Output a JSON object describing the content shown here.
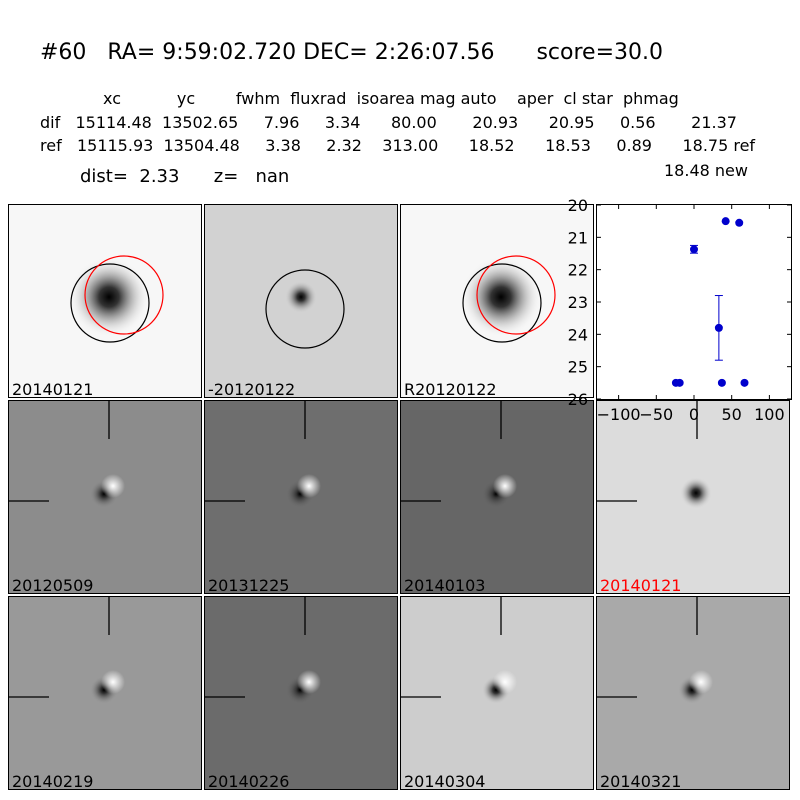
{
  "header": {
    "title": "#60   RA= 9:59:02.720 DEC= 2:26:07.56      score=30.0",
    "col_headers": "xc           yc        fwhm  fluxrad  isoarea mag auto    aper  cl star  phmag",
    "dif_row": "dif   15114.48  13502.65     7.96     3.34      80.00       20.93      20.95     0.56       21.37",
    "ref_row": "ref   15115.93  13504.48     3.38     2.32    313.00      18.52      18.53     0.89      18.75 ref",
    "new_row": "18.48 new",
    "dist_line": "dist=  2.33      z=   nan"
  },
  "stamps": [
    {
      "label": "20140121",
      "label_color": "#000000",
      "bg": "#f7f7f7",
      "style": "ref-blob",
      "circles": [
        "black",
        "red"
      ]
    },
    {
      "label": "-20120122",
      "label_color": "#000000",
      "bg": "#d2d2d2",
      "style": "dif-dot",
      "circles": [
        "black"
      ]
    },
    {
      "label": "R20120122",
      "label_color": "#000000",
      "bg": "#f7f7f7",
      "style": "ref-blob",
      "circles": [
        "black",
        "red"
      ]
    },
    {
      "label": "20120509",
      "label_color": "#000000",
      "bg": "#8c8c8c",
      "style": "dipole",
      "crosshair": true
    },
    {
      "label": "20131225",
      "label_color": "#000000",
      "bg": "#6e6e6e",
      "style": "dipole",
      "crosshair": true
    },
    {
      "label": "20140103",
      "label_color": "#000000",
      "bg": "#666666",
      "style": "dipole",
      "crosshair": true
    },
    {
      "label": "20140121",
      "label_color": "#ff0000",
      "bg": "#dcdcdc",
      "style": "dif-dot",
      "crosshair": true
    },
    {
      "label": "20140219",
      "label_color": "#000000",
      "bg": "#999999",
      "style": "dipole",
      "crosshair": true
    },
    {
      "label": "20140226",
      "label_color": "#000000",
      "bg": "#6b6b6b",
      "style": "dipole",
      "crosshair": true
    },
    {
      "label": "20140304",
      "label_color": "#000000",
      "bg": "#cdcdcd",
      "style": "dipole",
      "crosshair": true
    },
    {
      "label": "20140321",
      "label_color": "#000000",
      "bg": "#a9a9a9",
      "style": "dipole",
      "crosshair": true
    }
  ],
  "chart_data": {
    "type": "scatter",
    "xlim": [
      -130,
      130
    ],
    "ylim": [
      26,
      20
    ],
    "xticks": [
      -100,
      -50,
      0,
      50,
      100
    ],
    "xtick_labels": [
      "−100",
      "−50",
      "0",
      "50",
      "100"
    ],
    "yticks": [
      20,
      21,
      22,
      23,
      24,
      25,
      26
    ],
    "ytick_labels": [
      "20",
      "21",
      "22",
      "23",
      "24",
      "25",
      "26"
    ],
    "color": "#0000cc",
    "points": [
      {
        "x": -24,
        "y": 25.5,
        "yerr": 0
      },
      {
        "x": -19,
        "y": 25.5,
        "yerr": 0
      },
      {
        "x": 0,
        "y": 21.37,
        "yerr": 0.12
      },
      {
        "x": 33,
        "y": 23.8,
        "yerr": 1.0
      },
      {
        "x": 37,
        "y": 25.5,
        "yerr": 0
      },
      {
        "x": 42,
        "y": 20.5,
        "yerr": 0
      },
      {
        "x": 60,
        "y": 20.55,
        "yerr": 0
      },
      {
        "x": 67,
        "y": 25.5,
        "yerr": 0
      }
    ]
  }
}
